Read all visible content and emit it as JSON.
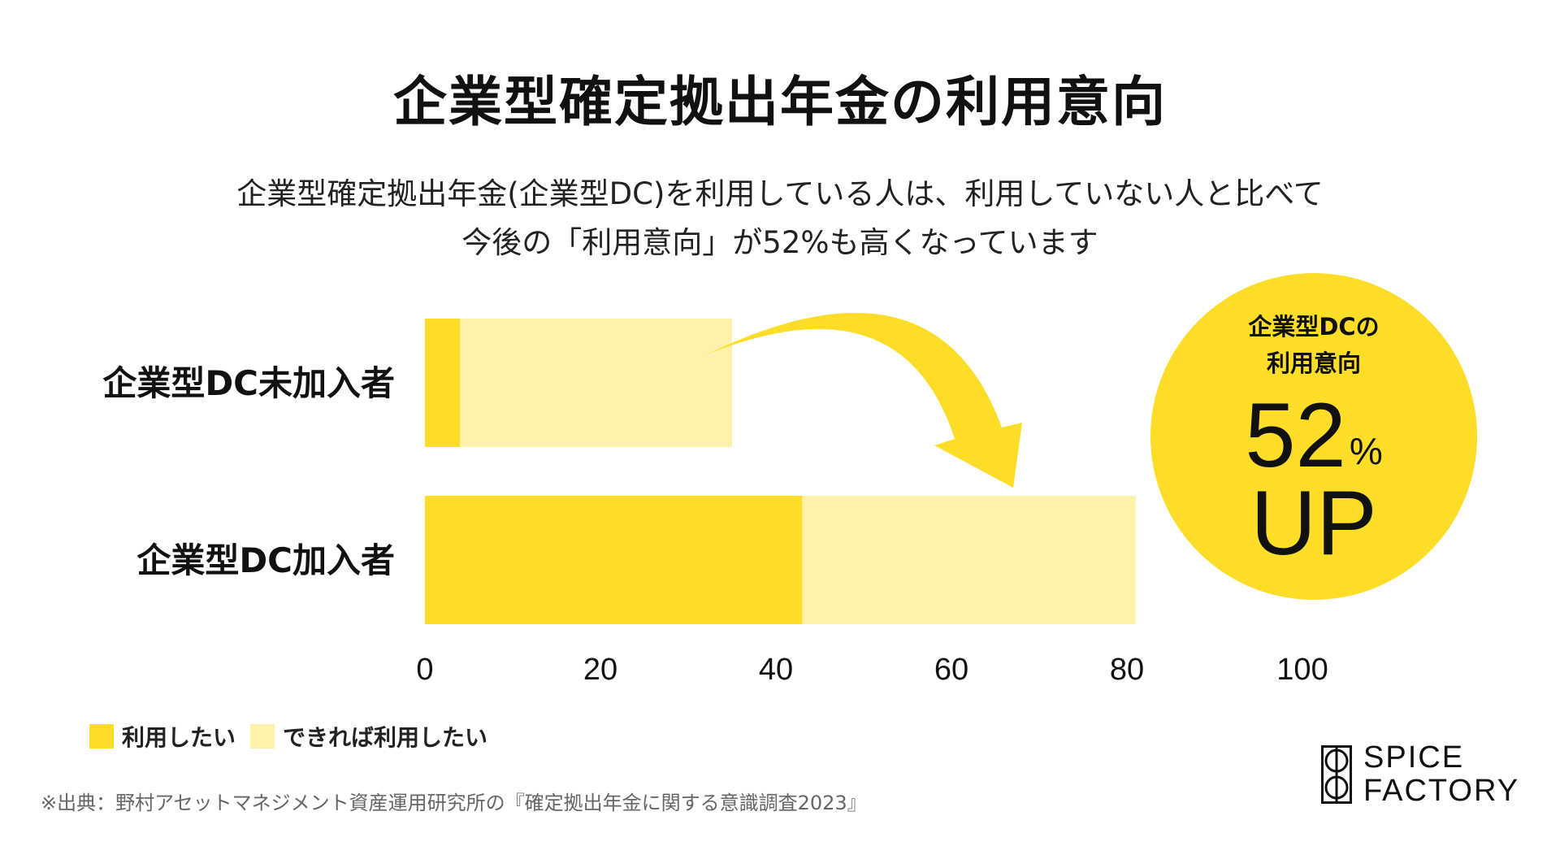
{
  "title": "企業型確定拠出年金の利用意向",
  "subtitle_line1": "企業型確定拠出年金(企業型DC)を利用している人は、利用していない人と比べて",
  "subtitle_line2": "今後の「利用意向」が52%も高くなっています",
  "colors": {
    "use": "#FDDD27",
    "maybe": "#FEF1A9",
    "badge": "#FDDD27",
    "arrow": "#FDDD27"
  },
  "chart_data": {
    "type": "bar",
    "orientation": "horizontal",
    "stacked": true,
    "categories": [
      "企業型DC未加入者",
      "企業型DC加入者"
    ],
    "series": [
      {
        "name": "利用したい",
        "values": [
          4,
          43
        ]
      },
      {
        "name": "できれば利用したい",
        "values": [
          31,
          38
        ]
      }
    ],
    "xlim": [
      0,
      100
    ],
    "xticks": [
      "0",
      "20",
      "40",
      "60",
      "80",
      "100"
    ],
    "grid": false,
    "legend_position": "bottom-left"
  },
  "badge": {
    "line1": "企業型DCの",
    "line2": "利用意向",
    "number": "52",
    "percent": "%",
    "up": "UP"
  },
  "source": "※出典：野村アセットマネジメント資産運用研究所の『確定拠出年金に関する意識調査2023』",
  "logo": {
    "line1": "SPICE",
    "line2": "FACTORY"
  }
}
